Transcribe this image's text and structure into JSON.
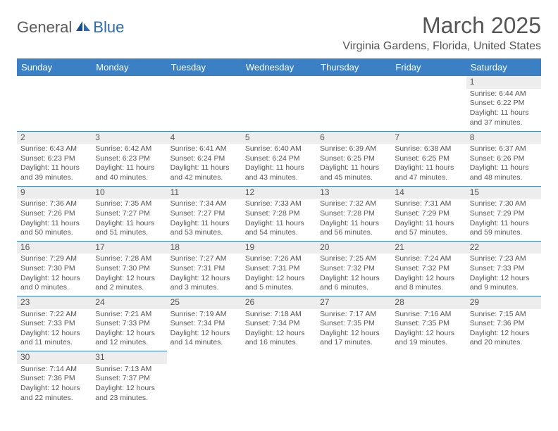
{
  "logo": {
    "general": "General",
    "blue": "Blue"
  },
  "title": "March 2025",
  "location": "Virginia Gardens, Florida, United States",
  "colors": {
    "header_bg": "#3b7fc4",
    "header_text": "#ffffff",
    "border": "#3b7fc4",
    "daynum_bg": "#ededed",
    "text": "#555555",
    "logo_gray": "#5a5a5a",
    "logo_blue": "#2a6db5"
  },
  "daysOfWeek": [
    "Sunday",
    "Monday",
    "Tuesday",
    "Wednesday",
    "Thursday",
    "Friday",
    "Saturday"
  ],
  "weeks": [
    [
      null,
      null,
      null,
      null,
      null,
      null,
      {
        "n": "1",
        "sr": "6:44 AM",
        "ss": "6:22 PM",
        "dl": "11 hours and 37 minutes."
      }
    ],
    [
      {
        "n": "2",
        "sr": "6:43 AM",
        "ss": "6:23 PM",
        "dl": "11 hours and 39 minutes."
      },
      {
        "n": "3",
        "sr": "6:42 AM",
        "ss": "6:23 PM",
        "dl": "11 hours and 40 minutes."
      },
      {
        "n": "4",
        "sr": "6:41 AM",
        "ss": "6:24 PM",
        "dl": "11 hours and 42 minutes."
      },
      {
        "n": "5",
        "sr": "6:40 AM",
        "ss": "6:24 PM",
        "dl": "11 hours and 43 minutes."
      },
      {
        "n": "6",
        "sr": "6:39 AM",
        "ss": "6:25 PM",
        "dl": "11 hours and 45 minutes."
      },
      {
        "n": "7",
        "sr": "6:38 AM",
        "ss": "6:25 PM",
        "dl": "11 hours and 47 minutes."
      },
      {
        "n": "8",
        "sr": "6:37 AM",
        "ss": "6:26 PM",
        "dl": "11 hours and 48 minutes."
      }
    ],
    [
      {
        "n": "9",
        "sr": "7:36 AM",
        "ss": "7:26 PM",
        "dl": "11 hours and 50 minutes."
      },
      {
        "n": "10",
        "sr": "7:35 AM",
        "ss": "7:27 PM",
        "dl": "11 hours and 51 minutes."
      },
      {
        "n": "11",
        "sr": "7:34 AM",
        "ss": "7:27 PM",
        "dl": "11 hours and 53 minutes."
      },
      {
        "n": "12",
        "sr": "7:33 AM",
        "ss": "7:28 PM",
        "dl": "11 hours and 54 minutes."
      },
      {
        "n": "13",
        "sr": "7:32 AM",
        "ss": "7:28 PM",
        "dl": "11 hours and 56 minutes."
      },
      {
        "n": "14",
        "sr": "7:31 AM",
        "ss": "7:29 PM",
        "dl": "11 hours and 57 minutes."
      },
      {
        "n": "15",
        "sr": "7:30 AM",
        "ss": "7:29 PM",
        "dl": "11 hours and 59 minutes."
      }
    ],
    [
      {
        "n": "16",
        "sr": "7:29 AM",
        "ss": "7:30 PM",
        "dl": "12 hours and 0 minutes."
      },
      {
        "n": "17",
        "sr": "7:28 AM",
        "ss": "7:30 PM",
        "dl": "12 hours and 2 minutes."
      },
      {
        "n": "18",
        "sr": "7:27 AM",
        "ss": "7:31 PM",
        "dl": "12 hours and 3 minutes."
      },
      {
        "n": "19",
        "sr": "7:26 AM",
        "ss": "7:31 PM",
        "dl": "12 hours and 5 minutes."
      },
      {
        "n": "20",
        "sr": "7:25 AM",
        "ss": "7:32 PM",
        "dl": "12 hours and 6 minutes."
      },
      {
        "n": "21",
        "sr": "7:24 AM",
        "ss": "7:32 PM",
        "dl": "12 hours and 8 minutes."
      },
      {
        "n": "22",
        "sr": "7:23 AM",
        "ss": "7:33 PM",
        "dl": "12 hours and 9 minutes."
      }
    ],
    [
      {
        "n": "23",
        "sr": "7:22 AM",
        "ss": "7:33 PM",
        "dl": "12 hours and 11 minutes."
      },
      {
        "n": "24",
        "sr": "7:21 AM",
        "ss": "7:33 PM",
        "dl": "12 hours and 12 minutes."
      },
      {
        "n": "25",
        "sr": "7:19 AM",
        "ss": "7:34 PM",
        "dl": "12 hours and 14 minutes."
      },
      {
        "n": "26",
        "sr": "7:18 AM",
        "ss": "7:34 PM",
        "dl": "12 hours and 16 minutes."
      },
      {
        "n": "27",
        "sr": "7:17 AM",
        "ss": "7:35 PM",
        "dl": "12 hours and 17 minutes."
      },
      {
        "n": "28",
        "sr": "7:16 AM",
        "ss": "7:35 PM",
        "dl": "12 hours and 19 minutes."
      },
      {
        "n": "29",
        "sr": "7:15 AM",
        "ss": "7:36 PM",
        "dl": "12 hours and 20 minutes."
      }
    ],
    [
      {
        "n": "30",
        "sr": "7:14 AM",
        "ss": "7:36 PM",
        "dl": "12 hours and 22 minutes."
      },
      {
        "n": "31",
        "sr": "7:13 AM",
        "ss": "7:37 PM",
        "dl": "12 hours and 23 minutes."
      },
      null,
      null,
      null,
      null,
      null
    ]
  ],
  "labels": {
    "sunrise": "Sunrise:",
    "sunset": "Sunset:",
    "daylight": "Daylight:"
  }
}
